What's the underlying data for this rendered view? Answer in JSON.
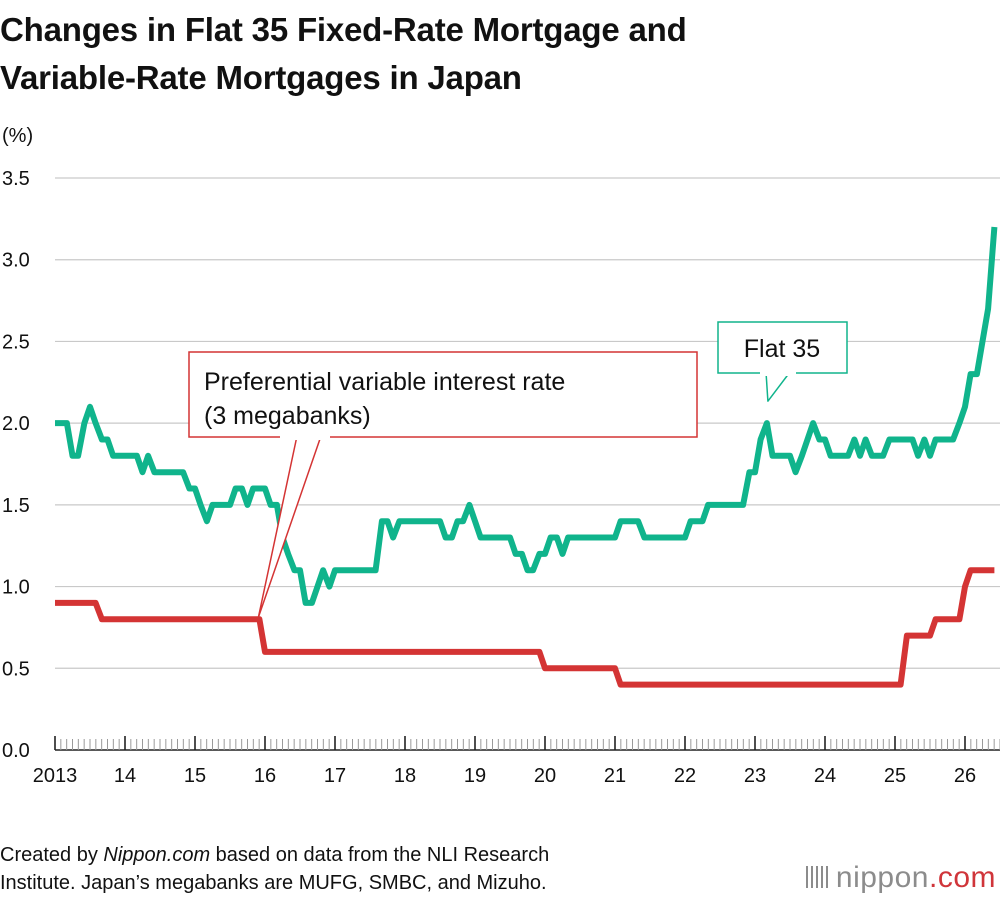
{
  "title": {
    "line1": "Changes in Flat 35 Fixed-Rate Mortgage and",
    "line2": "Variable-Rate Mortgages in Japan"
  },
  "chart_data": {
    "type": "line",
    "y_unit": "(%)",
    "ylim": [
      0,
      3.5
    ],
    "y_ticks": [
      "0.0",
      "0.5",
      "1.0",
      "1.5",
      "2.0",
      "2.5",
      "3.0",
      "3.5"
    ],
    "grid": "horizontal",
    "x_range": [
      2013,
      2026.5
    ],
    "x_ticks": [
      {
        "x": 2013,
        "label": "2013"
      },
      {
        "x": 2014,
        "label": "14"
      },
      {
        "x": 2015,
        "label": "15"
      },
      {
        "x": 2016,
        "label": "16"
      },
      {
        "x": 2017,
        "label": "17"
      },
      {
        "x": 2018,
        "label": "18"
      },
      {
        "x": 2019,
        "label": "19"
      },
      {
        "x": 2020,
        "label": "20"
      },
      {
        "x": 2021,
        "label": "21"
      },
      {
        "x": 2022,
        "label": "22"
      },
      {
        "x": 2023,
        "label": "23"
      },
      {
        "x": 2024,
        "label": "24"
      },
      {
        "x": 2025,
        "label": "25"
      },
      {
        "x": 2026,
        "label": "26"
      }
    ],
    "series": [
      {
        "name": "Flat 35",
        "color": "#10b48c",
        "callout_at": 2023.17,
        "points": [
          [
            2013.0,
            2.0
          ],
          [
            2013.17,
            2.0
          ],
          [
            2013.25,
            1.8
          ],
          [
            2013.33,
            1.8
          ],
          [
            2013.42,
            2.0
          ],
          [
            2013.5,
            2.1
          ],
          [
            2013.58,
            2.0
          ],
          [
            2013.67,
            1.9
          ],
          [
            2013.75,
            1.9
          ],
          [
            2013.83,
            1.8
          ],
          [
            2014.0,
            1.8
          ],
          [
            2014.17,
            1.8
          ],
          [
            2014.25,
            1.7
          ],
          [
            2014.33,
            1.8
          ],
          [
            2014.42,
            1.7
          ],
          [
            2014.58,
            1.7
          ],
          [
            2014.83,
            1.7
          ],
          [
            2014.92,
            1.6
          ],
          [
            2015.0,
            1.6
          ],
          [
            2015.08,
            1.5
          ],
          [
            2015.17,
            1.4
          ],
          [
            2015.25,
            1.5
          ],
          [
            2015.42,
            1.5
          ],
          [
            2015.5,
            1.5
          ],
          [
            2015.58,
            1.6
          ],
          [
            2015.67,
            1.6
          ],
          [
            2015.75,
            1.5
          ],
          [
            2015.83,
            1.6
          ],
          [
            2016.0,
            1.6
          ],
          [
            2016.08,
            1.5
          ],
          [
            2016.17,
            1.5
          ],
          [
            2016.25,
            1.3
          ],
          [
            2016.33,
            1.2
          ],
          [
            2016.42,
            1.1
          ],
          [
            2016.5,
            1.1
          ],
          [
            2016.58,
            0.9
          ],
          [
            2016.67,
            0.9
          ],
          [
            2016.75,
            1.0
          ],
          [
            2016.83,
            1.1
          ],
          [
            2016.92,
            1.0
          ],
          [
            2017.0,
            1.1
          ],
          [
            2017.08,
            1.1
          ],
          [
            2017.58,
            1.1
          ],
          [
            2017.67,
            1.4
          ],
          [
            2017.75,
            1.4
          ],
          [
            2017.83,
            1.3
          ],
          [
            2017.92,
            1.4
          ],
          [
            2018.0,
            1.4
          ],
          [
            2018.33,
            1.4
          ],
          [
            2018.5,
            1.4
          ],
          [
            2018.58,
            1.3
          ],
          [
            2018.67,
            1.3
          ],
          [
            2018.75,
            1.4
          ],
          [
            2018.83,
            1.4
          ],
          [
            2018.92,
            1.5
          ],
          [
            2019.0,
            1.4
          ],
          [
            2019.08,
            1.3
          ],
          [
            2019.5,
            1.3
          ],
          [
            2019.58,
            1.2
          ],
          [
            2019.67,
            1.2
          ],
          [
            2019.75,
            1.1
          ],
          [
            2019.83,
            1.1
          ],
          [
            2019.92,
            1.2
          ],
          [
            2020.0,
            1.2
          ],
          [
            2020.08,
            1.3
          ],
          [
            2020.17,
            1.3
          ],
          [
            2020.25,
            1.2
          ],
          [
            2020.33,
            1.3
          ],
          [
            2020.5,
            1.3
          ],
          [
            2021.0,
            1.3
          ],
          [
            2021.08,
            1.4
          ],
          [
            2021.33,
            1.4
          ],
          [
            2021.42,
            1.3
          ],
          [
            2021.5,
            1.3
          ],
          [
            2021.83,
            1.3
          ],
          [
            2022.0,
            1.3
          ],
          [
            2022.08,
            1.4
          ],
          [
            2022.25,
            1.4
          ],
          [
            2022.33,
            1.5
          ],
          [
            2022.5,
            1.5
          ],
          [
            2022.83,
            1.5
          ],
          [
            2022.92,
            1.7
          ],
          [
            2023.0,
            1.7
          ],
          [
            2023.08,
            1.9
          ],
          [
            2023.17,
            2.0
          ],
          [
            2023.25,
            1.8
          ],
          [
            2023.33,
            1.8
          ],
          [
            2023.5,
            1.8
          ],
          [
            2023.58,
            1.7
          ],
          [
            2023.67,
            1.8
          ],
          [
            2023.75,
            1.9
          ],
          [
            2023.83,
            2.0
          ],
          [
            2023.92,
            1.9
          ],
          [
            2024.0,
            1.9
          ],
          [
            2024.08,
            1.8
          ],
          [
            2024.33,
            1.8
          ],
          [
            2024.42,
            1.9
          ],
          [
            2024.5,
            1.8
          ],
          [
            2024.58,
            1.9
          ],
          [
            2024.67,
            1.8
          ],
          [
            2024.83,
            1.8
          ],
          [
            2024.92,
            1.9
          ],
          [
            2025.08,
            1.9
          ],
          [
            2025.25,
            1.9
          ],
          [
            2025.33,
            1.8
          ],
          [
            2025.42,
            1.9
          ],
          [
            2025.5,
            1.8
          ],
          [
            2025.58,
            1.9
          ],
          [
            2025.83,
            1.9
          ],
          [
            2025.92,
            2.0
          ],
          [
            2026.0,
            2.1
          ],
          [
            2026.08,
            2.3
          ],
          [
            2026.17,
            2.3
          ],
          [
            2026.25,
            2.5
          ],
          [
            2026.33,
            2.7
          ],
          [
            2026.42,
            3.2
          ]
        ]
      },
      {
        "name": "Preferential variable interest rate (3 megabanks)",
        "color": "#d43434",
        "callout_at": 2015.92,
        "points": [
          [
            2013.0,
            0.9
          ],
          [
            2013.58,
            0.9
          ],
          [
            2013.67,
            0.8
          ],
          [
            2015.92,
            0.8
          ],
          [
            2016.0,
            0.6
          ],
          [
            2019.92,
            0.6
          ],
          [
            2020.0,
            0.5
          ],
          [
            2021.0,
            0.5
          ],
          [
            2021.08,
            0.4
          ],
          [
            2025.08,
            0.4
          ],
          [
            2025.17,
            0.7
          ],
          [
            2025.5,
            0.7
          ],
          [
            2025.58,
            0.8
          ],
          [
            2025.92,
            0.8
          ],
          [
            2026.0,
            1.0
          ],
          [
            2026.08,
            1.1
          ],
          [
            2026.42,
            1.1
          ]
        ]
      }
    ],
    "callouts": {
      "variable_line1": "Preferential variable interest rate",
      "variable_line2": "(3 megabanks)",
      "flat35": "Flat 35"
    }
  },
  "footer": {
    "prefix": "Created by ",
    "site": "Nippon.com",
    "line1_rest": " based on data from the NLI Research",
    "line2": "Institute. Japan’s megabanks are MUFG, SMBC, and Mizuho."
  },
  "logo": {
    "main": "nippon",
    "suffix": ".com"
  }
}
